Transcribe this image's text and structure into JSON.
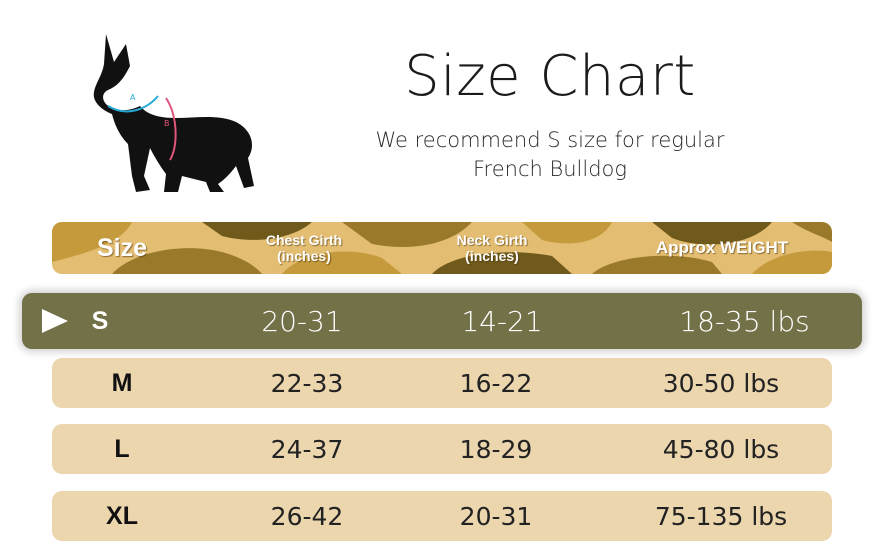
{
  "header": {
    "title": "Size Chart",
    "subtitle_line1": "We recommend S size for regular",
    "subtitle_line2": "French Bulldog"
  },
  "illustration": {
    "icon": "french-bulldog-silhouette",
    "label_a": "A",
    "label_b": "B",
    "colors": {
      "dog": "#111111",
      "neck_line": "#29a9d6",
      "chest_line": "#e0557a"
    }
  },
  "table": {
    "columns": {
      "size": "Size",
      "chest_line1": "Chest Girth",
      "chest_line2": "(inches)",
      "neck_line1": "Neck Girth",
      "neck_line2": "(inches)",
      "weight": "Approx WEIGHT"
    },
    "rows": [
      {
        "size": "S",
        "chest": "20-31",
        "neck": "14-21",
        "weight": "18-35 lbs",
        "highlighted": true
      },
      {
        "size": "M",
        "chest": "22-33",
        "neck": "16-22",
        "weight": "30-50 lbs"
      },
      {
        "size": "L",
        "chest": "24-37",
        "neck": "18-29",
        "weight": "45-80 lbs"
      },
      {
        "size": "XL",
        "chest": "26-42",
        "neck": "20-31",
        "weight": "75-135 lbs"
      }
    ],
    "colors": {
      "header_camo": [
        "#e3be72",
        "#c49a3c",
        "#9a7a2a",
        "#6f5a1c",
        "#d9b060"
      ],
      "row_fill": "#ecd6ae",
      "highlight_fill": "#737148"
    }
  }
}
